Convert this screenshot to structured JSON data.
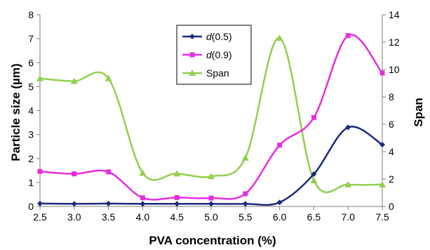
{
  "chart_data": {
    "type": "line",
    "smooth": true,
    "x": [
      2.5,
      3.0,
      3.5,
      4.0,
      4.5,
      5.0,
      5.5,
      6.0,
      6.5,
      7.0,
      7.5
    ],
    "x_ticks": [
      "2.5",
      "3.0",
      "3.5",
      "4.0",
      "4.5",
      "5.0",
      "5.5",
      "6.0",
      "6.5",
      "7.0",
      "7.5"
    ],
    "xlabel": "PVA concentration (%)",
    "ylabel": "Particle size (µm)",
    "y2label": "Span",
    "ylim": [
      0,
      8
    ],
    "y2lim": [
      0,
      14
    ],
    "y_ticks": [
      "0",
      "1",
      "2",
      "3",
      "4",
      "5",
      "6",
      "7",
      "8"
    ],
    "y2_ticks": [
      "0",
      "2",
      "4",
      "6",
      "8",
      "10",
      "12",
      "14"
    ],
    "grid": false,
    "legend_position": "top-center",
    "series": [
      {
        "name": "d(0.5)",
        "name_italic": "d",
        "name_rest": "(0.5)",
        "axis": "left",
        "color": "#1c2a78",
        "marker": "diamond",
        "values": [
          0.12,
          0.11,
          0.12,
          0.11,
          0.11,
          0.11,
          0.11,
          0.17,
          1.35,
          3.3,
          2.58
        ]
      },
      {
        "name": "d(0.9)",
        "name_italic": "d",
        "name_rest": "(0.9)",
        "axis": "left",
        "color": "#e62ee0",
        "marker": "square",
        "values": [
          1.46,
          1.36,
          1.44,
          0.36,
          0.37,
          0.35,
          0.53,
          2.56,
          3.71,
          7.13,
          5.57
        ]
      },
      {
        "name": "Span",
        "name_italic": "",
        "name_rest": "Span",
        "axis": "right",
        "color": "#92cf50",
        "marker": "triangle",
        "values": [
          9.35,
          9.15,
          9.35,
          2.45,
          2.4,
          2.2,
          3.55,
          12.3,
          1.9,
          1.6,
          1.6
        ]
      }
    ]
  }
}
